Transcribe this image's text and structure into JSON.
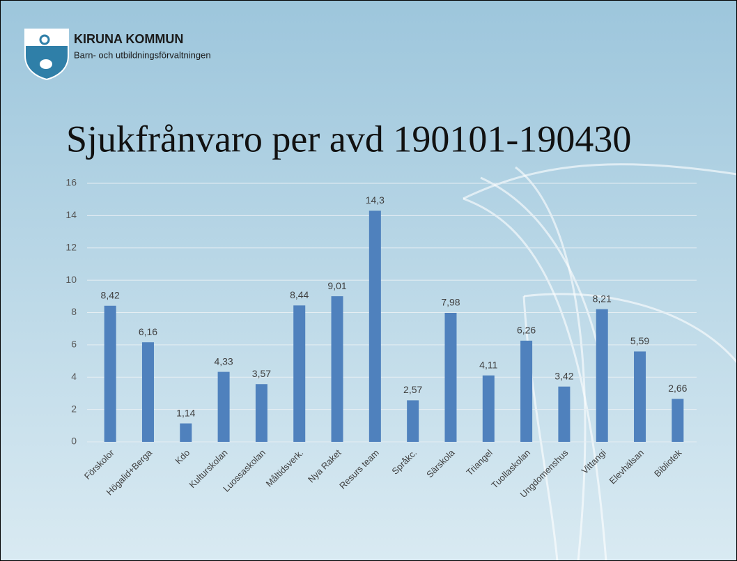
{
  "logo": {
    "title": "KIRUNA KOMMUN",
    "subtitle": "Barn- och utbildningsförvaltningen"
  },
  "chart_data": {
    "type": "bar",
    "title": "Sjukfrånvaro per avd 190101-190430",
    "categories": [
      "Förskolor",
      "Högalid+Berga",
      "Kdo",
      "Kulturskolan",
      "Luossaskolan",
      "Måltidsverk.",
      "Nya Raket",
      "Resurs team",
      "Språkc.",
      "Särskola",
      "Triangel",
      "Tuollaskolan",
      "Ungdomenshus",
      "Vittangi",
      "Elevhälsan",
      "Bibliotek"
    ],
    "values": [
      8.42,
      6.16,
      1.14,
      4.33,
      3.57,
      8.44,
      9.01,
      14.3,
      2.57,
      7.98,
      4.11,
      6.26,
      3.42,
      8.21,
      5.59,
      2.66
    ],
    "value_labels": [
      "8,42",
      "6,16",
      "1,14",
      "4,33",
      "3,57",
      "8,44",
      "9,01",
      "14,3",
      "2,57",
      "7,98",
      "4,11",
      "6,26",
      "3,42",
      "8,21",
      "5,59",
      "2,66"
    ],
    "color": "#4f81bd",
    "ylim": [
      0,
      16
    ],
    "yticks": [
      0,
      2,
      4,
      6,
      8,
      10,
      12,
      14,
      16
    ],
    "grid": true
  }
}
